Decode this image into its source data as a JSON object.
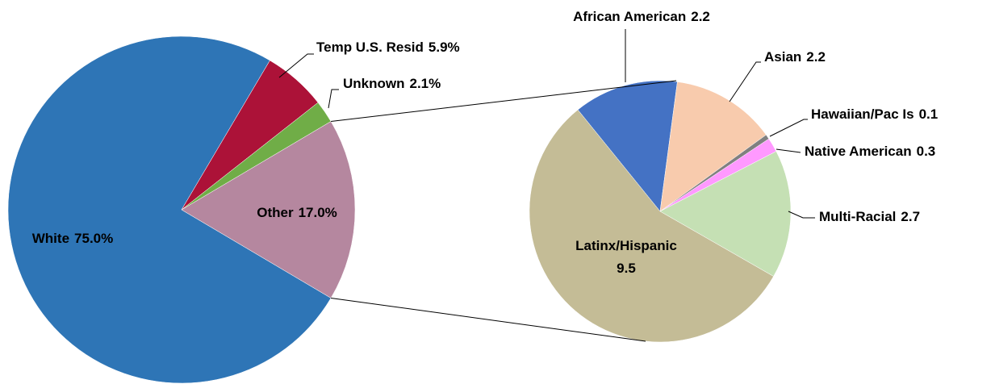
{
  "chart_data": [
    {
      "type": "pie",
      "categories": [
        "White",
        "Temp U.S. Resid",
        "Unknown",
        "Other"
      ],
      "values": [
        75,
        5.9,
        2.1,
        17
      ],
      "value_labels": [
        "75.0%",
        "5.9%",
        "2.1%",
        "17.0%"
      ],
      "colors": [
        "#2e75b6",
        "#ac1238",
        "#70ad47",
        "#b5879f"
      ]
    },
    {
      "type": "pie",
      "categories": [
        "African American",
        "Asian",
        "Hawaiian/Pac Is",
        "Native American",
        "Multi-Racial",
        "Latinx/Hispanic"
      ],
      "values": [
        2.2,
        2.2,
        0.1,
        0.3,
        2.7,
        9.5
      ],
      "colors": [
        "#4472c4",
        "#f8cbad",
        "#808080",
        "#ff99ff",
        "#c5e0b4",
        "#c4bc96"
      ]
    }
  ]
}
